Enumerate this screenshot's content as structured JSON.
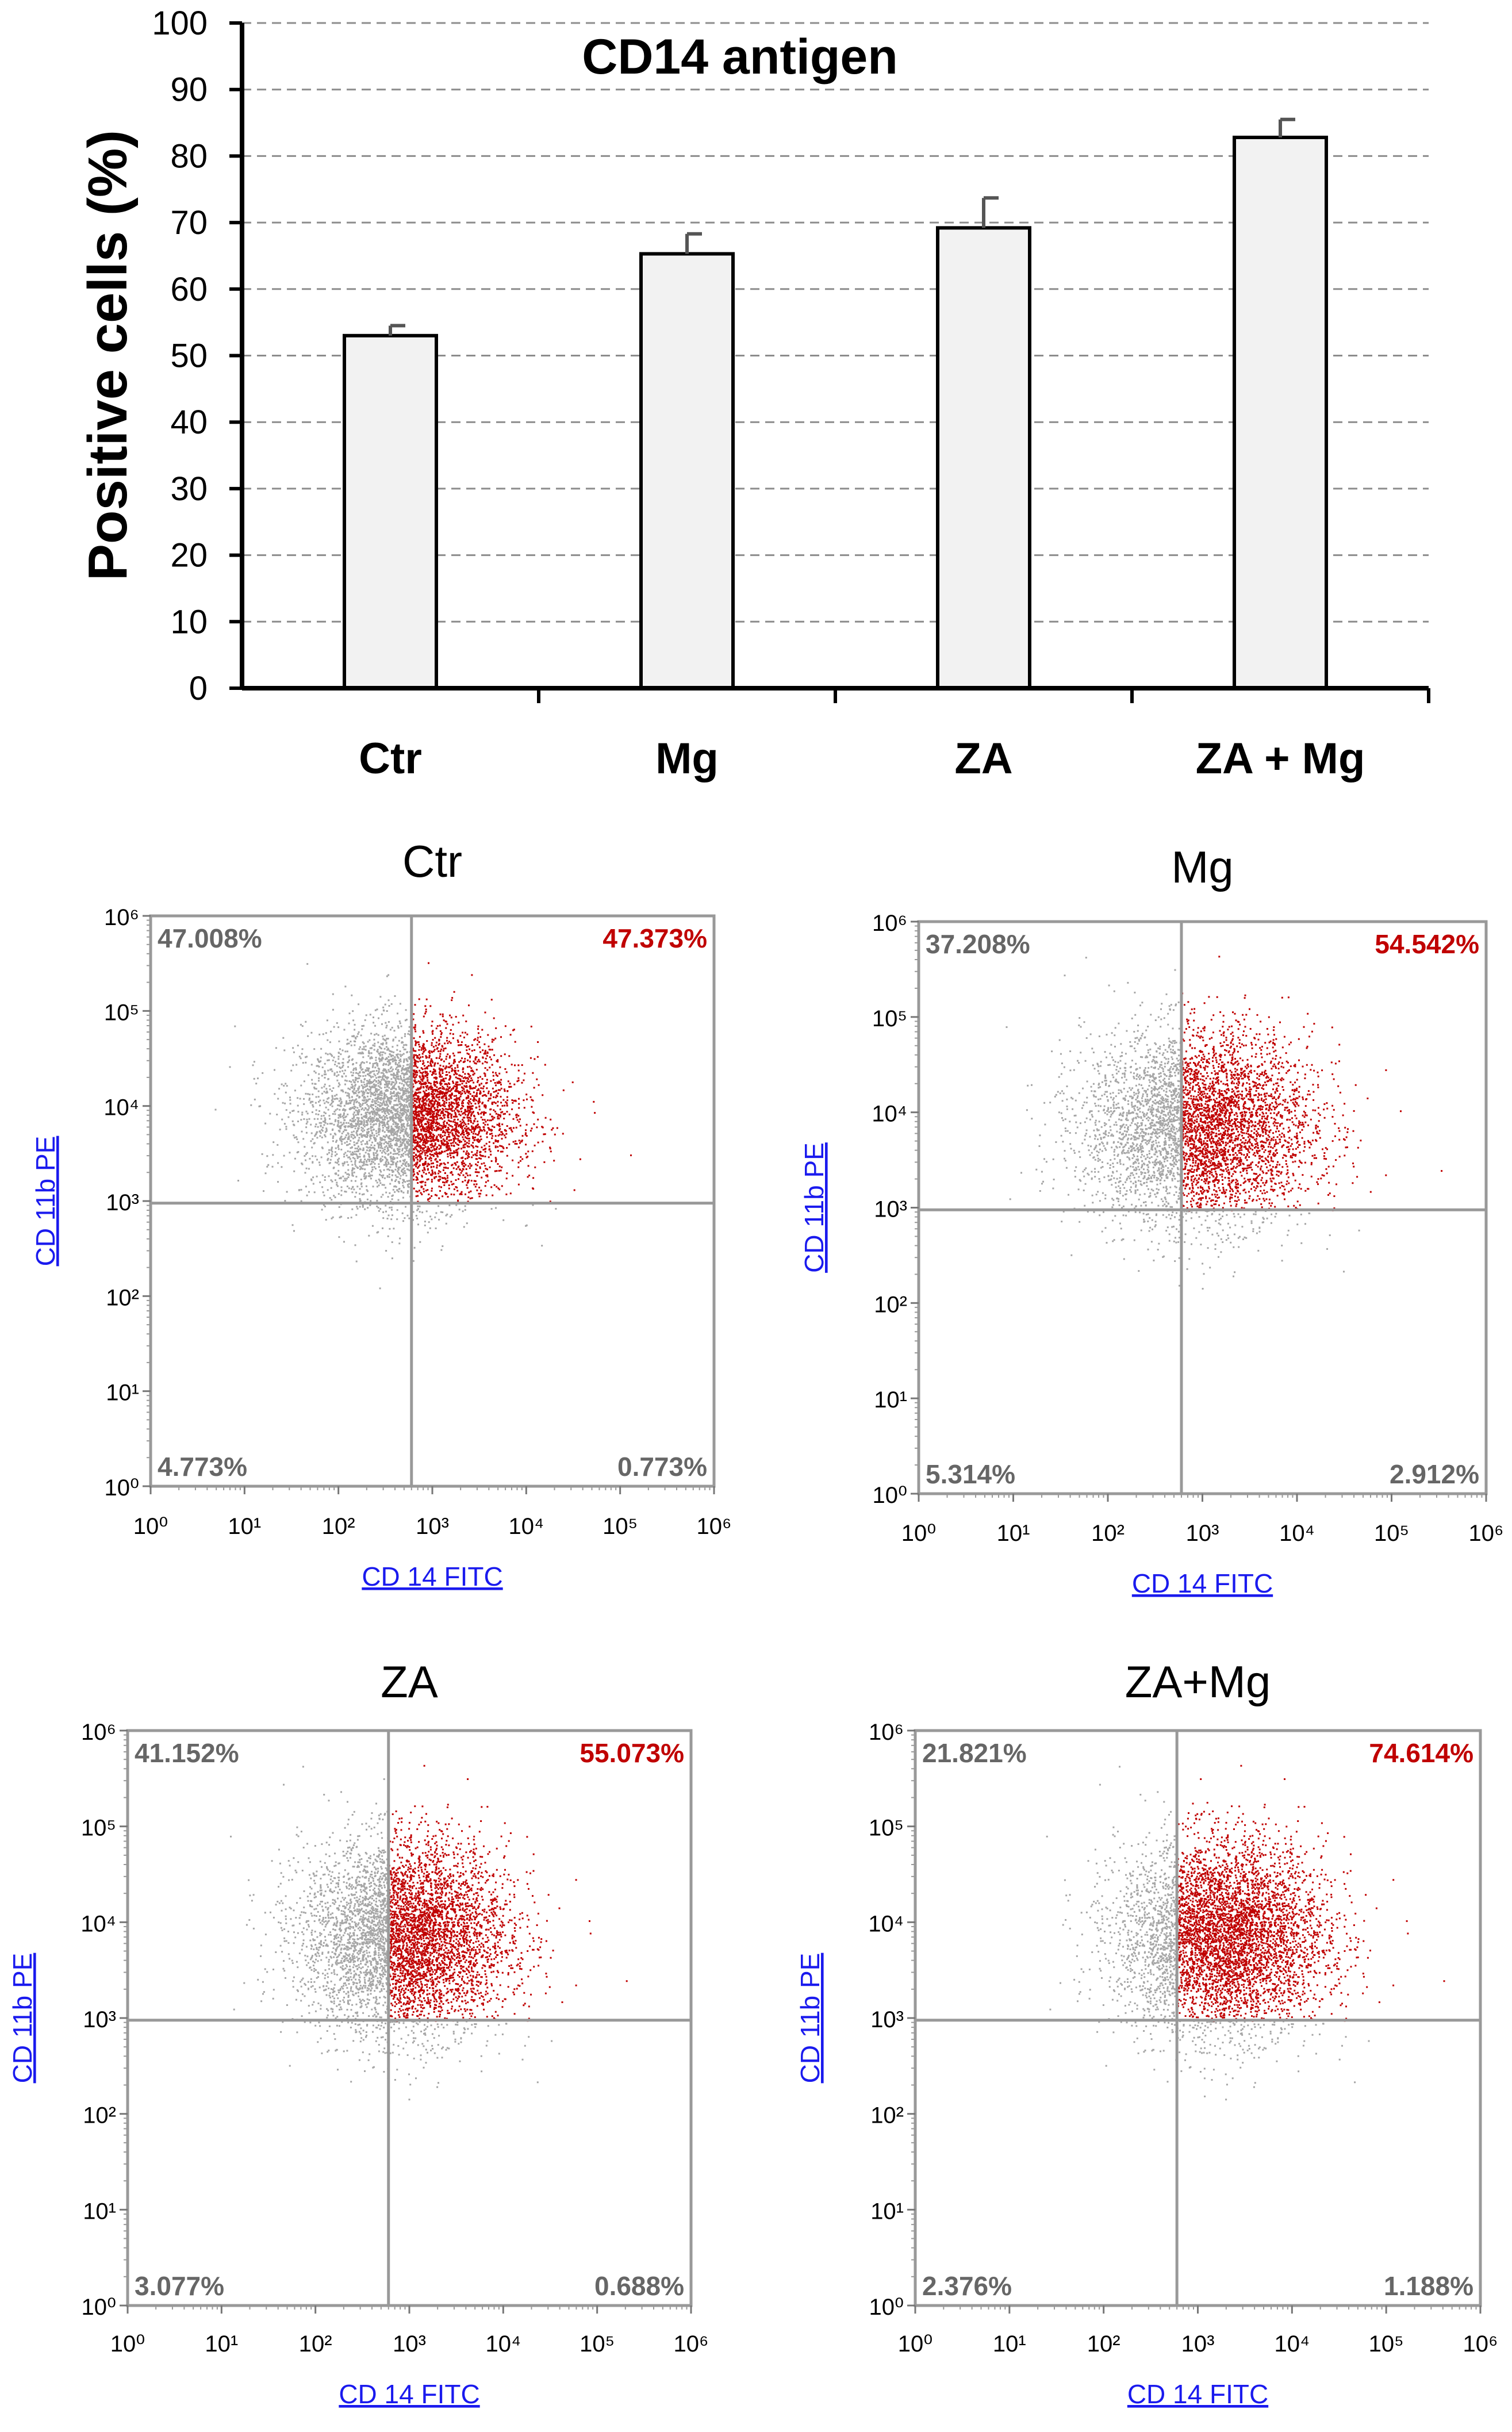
{
  "chart_data": [
    {
      "type": "bar",
      "title": "CD14 antigen",
      "ylabel": "Positive cells (%)",
      "xlabel": "",
      "ylim": [
        0,
        100
      ],
      "yticks": [
        "0",
        "10",
        "20",
        "30",
        "40",
        "50",
        "60",
        "70",
        "80",
        "90",
        "100"
      ],
      "grid": "horizontal-dashed",
      "categories": [
        "Ctr",
        "Mg",
        "ZA",
        "ZA + Mg"
      ],
      "values": [
        53,
        65.3,
        69.2,
        82.8
      ],
      "errors": [
        1.5,
        3.0,
        4.5,
        2.7
      ],
      "bar_color": "#f2f2f2",
      "edge_color": "#000000",
      "error_color": "#555555"
    },
    {
      "type": "scatter",
      "title": "Ctr",
      "xlabel": "CD 14 FITC",
      "ylabel": "CD 11b PE",
      "xscale": "log",
      "yscale": "log",
      "xlim": [
        1,
        1000000
      ],
      "ylim": [
        1,
        1000000
      ],
      "gate": {
        "x": 600,
        "y": 950
      },
      "quadrants": {
        "upper_left": "47.008%",
        "upper_right": "47.373%",
        "lower_left": "4.773%",
        "lower_right": "0.773%"
      },
      "population": {
        "log_x_center": 2.75,
        "log_x_sd": 0.55,
        "log_y_center": 3.9,
        "log_y_sd": 0.45,
        "count": 5200
      }
    },
    {
      "type": "scatter",
      "title": "Mg",
      "xlabel": "CD 14 FITC",
      "ylabel": "CD 11b PE",
      "xscale": "log",
      "yscale": "log",
      "xlim": [
        1,
        1000000
      ],
      "ylim": [
        1,
        1000000
      ],
      "gate": {
        "x": 600,
        "y": 950
      },
      "quadrants": {
        "upper_left": "37.208%",
        "upper_right": "54.542%",
        "lower_left": "5.314%",
        "lower_right": "2.912%"
      },
      "population": {
        "log_x_center": 2.95,
        "log_x_sd": 0.6,
        "log_y_center": 3.85,
        "log_y_sd": 0.5,
        "count": 4800
      }
    },
    {
      "type": "scatter",
      "title": "ZA",
      "xlabel": "CD 14 FITC",
      "ylabel": "CD 11b PE",
      "xscale": "log",
      "yscale": "log",
      "xlim": [
        1,
        1000000
      ],
      "ylim": [
        1,
        1000000
      ],
      "gate": {
        "x": 600,
        "y": 950
      },
      "quadrants": {
        "upper_left": "41.152%",
        "upper_right": "55.073%",
        "lower_left": "3.077%",
        "lower_right": "0.688%"
      },
      "population": {
        "log_x_center": 2.95,
        "log_x_sd": 0.55,
        "log_y_center": 3.85,
        "log_y_sd": 0.5,
        "count": 5200
      }
    },
    {
      "type": "scatter",
      "title": "ZA+Mg",
      "xlabel": "CD 14 FITC",
      "ylabel": "CD 11b PE",
      "xscale": "log",
      "yscale": "log",
      "xlim": [
        1,
        1000000
      ],
      "ylim": [
        1,
        1000000
      ],
      "gate": {
        "x": 600,
        "y": 950
      },
      "quadrants": {
        "upper_left": "21.821%",
        "upper_right": "74.614%",
        "lower_left": "2.376%",
        "lower_right": "1.188%"
      },
      "population": {
        "log_x_center": 3.25,
        "log_x_sd": 0.55,
        "log_y_center": 3.85,
        "log_y_sd": 0.5,
        "count": 6200
      }
    }
  ],
  "colors": {
    "positive_events": "#c00000",
    "negative_events": "#a6a6a6",
    "gate_line": "#999999",
    "frame": "#999999",
    "quadrant_label_gray": "#666666",
    "quadrant_label_red": "#c00000",
    "axis_label_link": "#1a1aee"
  }
}
